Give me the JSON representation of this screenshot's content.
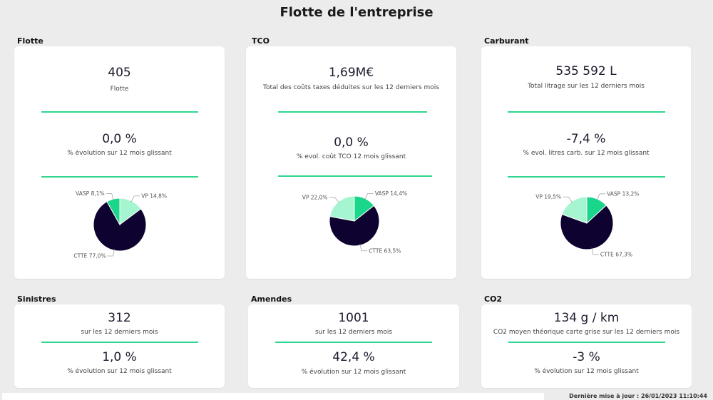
{
  "page": {
    "title": "Flotte de l'entreprise",
    "footer": "Dernière mise à jour : 26/01/2023 11:10:44"
  },
  "colors": {
    "background": "#ececec",
    "card": "#ffffff",
    "divider": "#2ed68e",
    "pie_dark": "#0e0230",
    "pie_mint": "#a5f5d1",
    "pie_green": "#19d68a"
  },
  "sections": {
    "flotte": {
      "label": "Flotte",
      "value": "405",
      "caption": "Flotte",
      "change": "0,0 %",
      "change_caption": "% évolution sur 12 mois glissant"
    },
    "tco": {
      "label": "TCO",
      "value": "1,69M€",
      "caption": "Total des coûts taxes déduites sur les 12 derniers mois",
      "change": "0,0 %",
      "change_caption": "% evol. coût TCO 12 mois glissant"
    },
    "carburant": {
      "label": "Carburant",
      "value": "535 592 L",
      "caption": "Total litrage sur les 12 derniers mois",
      "change": "-7,4 %",
      "change_caption": "% evol. litres carb. sur 12 mois glissant"
    },
    "sinistres": {
      "label": "Sinistres",
      "value": "312",
      "caption": "sur les 12 derniers mois",
      "change": "1,0 %",
      "change_caption": "% évolution sur 12 mois glissant"
    },
    "amendes": {
      "label": "Amendes",
      "value": "1001",
      "caption": "sur les 12 derniers mois",
      "change": "42,4 %",
      "change_caption": "% évolution sur 12 mois glissant"
    },
    "co2": {
      "label": "CO2",
      "value": "134 g / km",
      "caption": "CO2 moyen théorique carte grise sur les 12 derniers mois",
      "change": "-3 %",
      "change_caption": "% évolution sur 12 mois glissant"
    }
  },
  "chart_data": [
    {
      "type": "pie",
      "title": "",
      "slices": [
        {
          "label": "VP 14,8%",
          "value": 14.8,
          "color": "#a5f5d1"
        },
        {
          "label": "CTTE 77,0%",
          "value": 77.0,
          "color": "#0e0230"
        },
        {
          "label": "VASP 8,1%",
          "value": 8.1,
          "color": "#19d68a"
        }
      ]
    },
    {
      "type": "pie",
      "title": "",
      "slices": [
        {
          "label": "VASP 14,4%",
          "value": 14.4,
          "color": "#19d68a"
        },
        {
          "label": "CTTE 63,5%",
          "value": 63.5,
          "color": "#0e0230"
        },
        {
          "label": "VP 22,0%",
          "value": 22.0,
          "color": "#a5f5d1"
        }
      ]
    },
    {
      "type": "pie",
      "title": "",
      "slices": [
        {
          "label": "VASP 13,2%",
          "value": 13.2,
          "color": "#19d68a"
        },
        {
          "label": "CTTE 67,3%",
          "value": 67.3,
          "color": "#0e0230"
        },
        {
          "label": "VP 19,5%",
          "value": 19.5,
          "color": "#a5f5d1"
        }
      ]
    }
  ]
}
